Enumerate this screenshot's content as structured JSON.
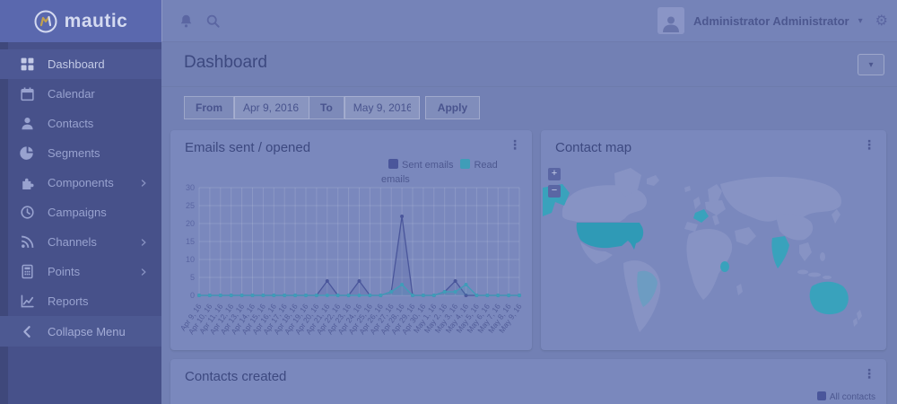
{
  "theme": {
    "sidebar_bg": "#47518a",
    "logo_bg": "#5a68ae",
    "main_bg": "#7280b4",
    "card_bg": "#7a88bd",
    "accent_teal": "#3f9db8",
    "accent_indigo": "#4a569b",
    "map_highlight": "#39a2bc"
  },
  "sidebar": {
    "logo_text": "mautic",
    "items": [
      {
        "label": "Dashboard",
        "icon": "dashboard-icon",
        "active": true,
        "has_submenu": false
      },
      {
        "label": "Calendar",
        "icon": "calendar-icon",
        "active": false,
        "has_submenu": false
      },
      {
        "label": "Contacts",
        "icon": "contacts-icon",
        "active": false,
        "has_submenu": false
      },
      {
        "label": "Segments",
        "icon": "segments-icon",
        "active": false,
        "has_submenu": false
      },
      {
        "label": "Components",
        "icon": "components-icon",
        "active": false,
        "has_submenu": true
      },
      {
        "label": "Campaigns",
        "icon": "campaigns-icon",
        "active": false,
        "has_submenu": false
      },
      {
        "label": "Channels",
        "icon": "channels-icon",
        "active": false,
        "has_submenu": true
      },
      {
        "label": "Points",
        "icon": "points-icon",
        "active": false,
        "has_submenu": true
      },
      {
        "label": "Reports",
        "icon": "reports-icon",
        "active": false,
        "has_submenu": false
      }
    ],
    "collapse_label": "Collapse Menu"
  },
  "topbar": {
    "user_name": "Administrator Administrator",
    "caret": "▾"
  },
  "page": {
    "title": "Dashboard"
  },
  "filter": {
    "from_label": "From",
    "from_value": "Apr 9, 2016",
    "to_label": "To",
    "to_value": "May 9, 2016",
    "apply_label": "Apply"
  },
  "emails_card": {
    "title": "Emails sent / opened",
    "legend": [
      {
        "label": "Sent emails",
        "color": "#4a569b"
      },
      {
        "label": "Read emails",
        "color": "#3f9db8"
      }
    ]
  },
  "contact_map_card": {
    "title": "Contact map",
    "zoom_in": "+",
    "zoom_out": "−",
    "highlighted_countries": [
      "United States",
      "Alaska (US)",
      "Brazil",
      "France",
      "India",
      "East Africa",
      "Australia"
    ]
  },
  "contacts_created_card": {
    "title": "Contacts created",
    "legend": [
      {
        "label": "All contacts",
        "color": "#4a569b"
      }
    ]
  },
  "chart_data": {
    "type": "line",
    "title": "Emails sent / opened",
    "xlabel": "",
    "ylabel": "",
    "ylim": [
      0,
      30
    ],
    "yticks": [
      0,
      5,
      10,
      15,
      20,
      25,
      30
    ],
    "grid": true,
    "legend_position": "top-right",
    "x": [
      "Apr 9, 16",
      "Apr 10, 16",
      "Apr 11, 16",
      "Apr 12, 16",
      "Apr 13, 16",
      "Apr 14, 16",
      "Apr 15, 16",
      "Apr 16, 16",
      "Apr 17, 16",
      "Apr 18, 16",
      "Apr 19, 16",
      "Apr 20, 16",
      "Apr 21, 16",
      "Apr 22, 16",
      "Apr 23, 16",
      "Apr 24, 16",
      "Apr 25, 16",
      "Apr 26, 16",
      "Apr 27, 16",
      "Apr 28, 16",
      "Apr 29, 16",
      "Apr 30, 16",
      "May 1, 16",
      "May 2, 16",
      "May 3, 16",
      "May 4, 16",
      "May 5, 16",
      "May 6, 16",
      "May 7, 16",
      "May 8, 16",
      "May 9, 16"
    ],
    "series": [
      {
        "name": "Sent emails",
        "color": "#4a569b",
        "values": [
          0,
          0,
          0,
          0,
          0,
          0,
          0,
          0,
          0,
          0,
          0,
          0,
          4,
          0,
          0,
          4,
          0,
          0,
          1,
          22,
          0,
          0,
          0,
          1,
          4,
          0,
          0,
          0,
          0,
          0,
          0
        ]
      },
      {
        "name": "Read emails",
        "color": "#3f9db8",
        "values": [
          0,
          0,
          0,
          0,
          0,
          0,
          0,
          0,
          0,
          0,
          0,
          0,
          0,
          0,
          0,
          0,
          0,
          0,
          1,
          3,
          0,
          0,
          0,
          1,
          1,
          3,
          0,
          0,
          0,
          0,
          0
        ]
      }
    ]
  }
}
